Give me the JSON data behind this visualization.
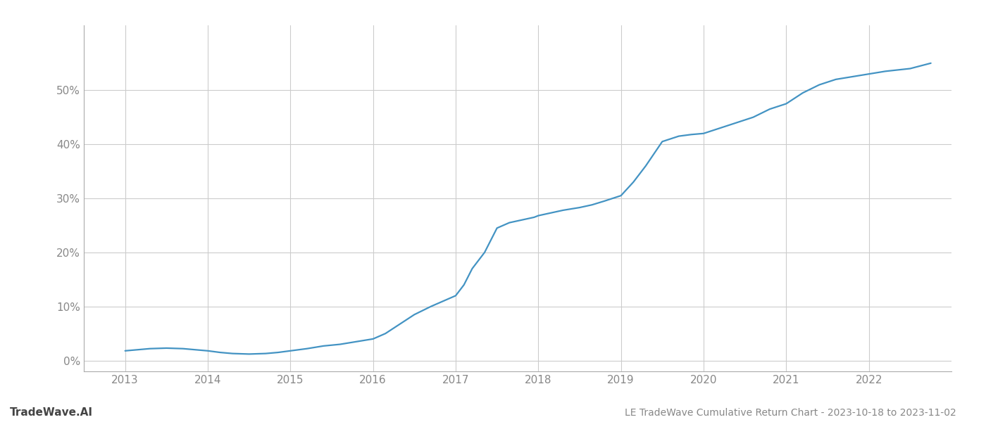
{
  "title": "LE TradeWave Cumulative Return Chart - 2023-10-18 to 2023-11-02",
  "watermark": "TradeWave.AI",
  "line_color": "#4393c3",
  "background_color": "#ffffff",
  "grid_color": "#cccccc",
  "x_years": [
    2013,
    2014,
    2015,
    2016,
    2017,
    2018,
    2019,
    2020,
    2021,
    2022
  ],
  "x_data": [
    2013.0,
    2013.15,
    2013.3,
    2013.5,
    2013.7,
    2013.85,
    2014.0,
    2014.15,
    2014.3,
    2014.5,
    2014.7,
    2014.85,
    2015.0,
    2015.2,
    2015.4,
    2015.6,
    2015.8,
    2016.0,
    2016.15,
    2016.3,
    2016.5,
    2016.7,
    2016.85,
    2017.0,
    2017.1,
    2017.2,
    2017.35,
    2017.5,
    2017.65,
    2017.8,
    2017.95,
    2018.0,
    2018.15,
    2018.3,
    2018.5,
    2018.65,
    2018.8,
    2019.0,
    2019.15,
    2019.3,
    2019.5,
    2019.7,
    2019.85,
    2020.0,
    2020.2,
    2020.4,
    2020.6,
    2020.8,
    2021.0,
    2021.2,
    2021.4,
    2021.6,
    2021.8,
    2022.0,
    2022.2,
    2022.5,
    2022.75
  ],
  "y_data": [
    1.8,
    2.0,
    2.2,
    2.3,
    2.2,
    2.0,
    1.8,
    1.5,
    1.3,
    1.2,
    1.3,
    1.5,
    1.8,
    2.2,
    2.7,
    3.0,
    3.5,
    4.0,
    5.0,
    6.5,
    8.5,
    10.0,
    11.0,
    12.0,
    14.0,
    17.0,
    20.0,
    24.5,
    25.5,
    26.0,
    26.5,
    26.8,
    27.3,
    27.8,
    28.3,
    28.8,
    29.5,
    30.5,
    33.0,
    36.0,
    40.5,
    41.5,
    41.8,
    42.0,
    43.0,
    44.0,
    45.0,
    46.5,
    47.5,
    49.5,
    51.0,
    52.0,
    52.5,
    53.0,
    53.5,
    54.0,
    55.0
  ],
  "ylim": [
    -2,
    62
  ],
  "yticks": [
    0,
    10,
    20,
    30,
    40,
    50
  ],
  "xlim": [
    2012.5,
    2023.0
  ],
  "title_fontsize": 10,
  "watermark_fontsize": 11,
  "axis_label_fontsize": 11,
  "line_width": 1.6
}
